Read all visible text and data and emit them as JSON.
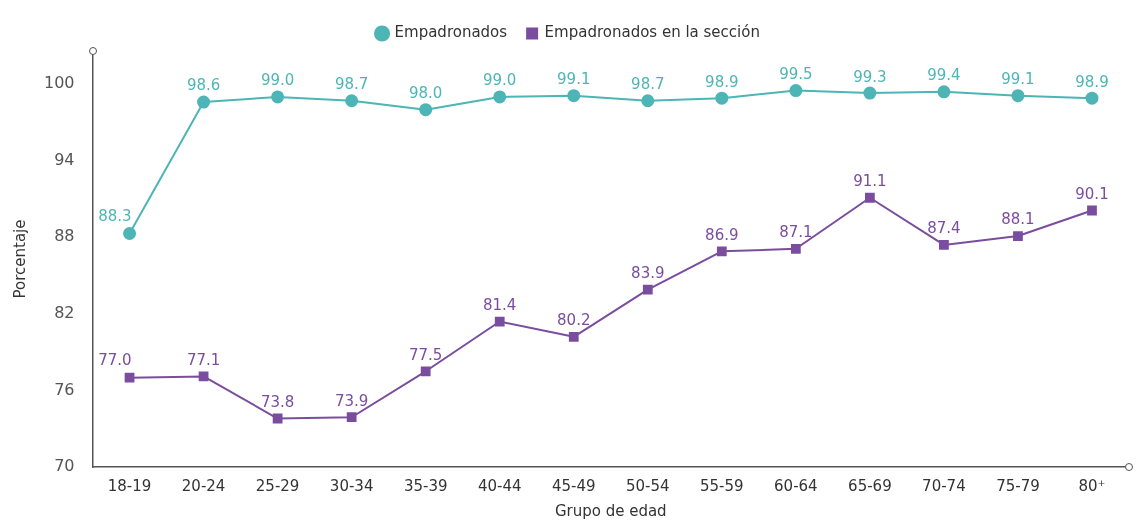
{
  "chart_data": {
    "type": "line",
    "xlabel": "Grupo de edad",
    "ylabel": "Porcentaje",
    "categories": [
      "18-19",
      "20-24",
      "25-29",
      "30-34",
      "35-39",
      "40-44",
      "45-49",
      "50-54",
      "55-59",
      "60-64",
      "65-69",
      "70-74",
      "75-79",
      "80⁺"
    ],
    "series": [
      {
        "name": "Empadronados",
        "color": "#4db5b5",
        "marker": "circle",
        "value_labels": [
          "88.3",
          "98.6",
          "99.0",
          "98.7",
          "98.0",
          "99.0",
          "99.1",
          "98.7",
          "98.9",
          "99.5",
          "99.3",
          "99.4",
          "99.1",
          "98.9"
        ],
        "values": [
          88.3,
          98.6,
          99.0,
          98.7,
          98.0,
          99.0,
          99.1,
          98.7,
          98.9,
          99.5,
          99.3,
          99.4,
          99.1,
          98.9
        ]
      },
      {
        "name": "Empadronados en la sección",
        "color": "#7a4d9f",
        "marker": "square",
        "value_labels": [
          "77.0",
          "77.1",
          "73.8",
          "73.9",
          "77.5",
          "81.4",
          "80.2",
          "83.9",
          "86.9",
          "87.1",
          "91.1",
          "87.4",
          "88.1",
          "90.1"
        ],
        "values": [
          77.0,
          77.1,
          73.8,
          73.9,
          77.5,
          81.4,
          80.2,
          83.9,
          86.9,
          87.1,
          91.1,
          87.4,
          88.1,
          90.1
        ]
      }
    ],
    "ylim": [
      70,
      102.6
    ],
    "yticks": [
      70,
      76,
      82,
      88,
      94,
      100
    ],
    "legend": "top",
    "line_style": "solid"
  }
}
